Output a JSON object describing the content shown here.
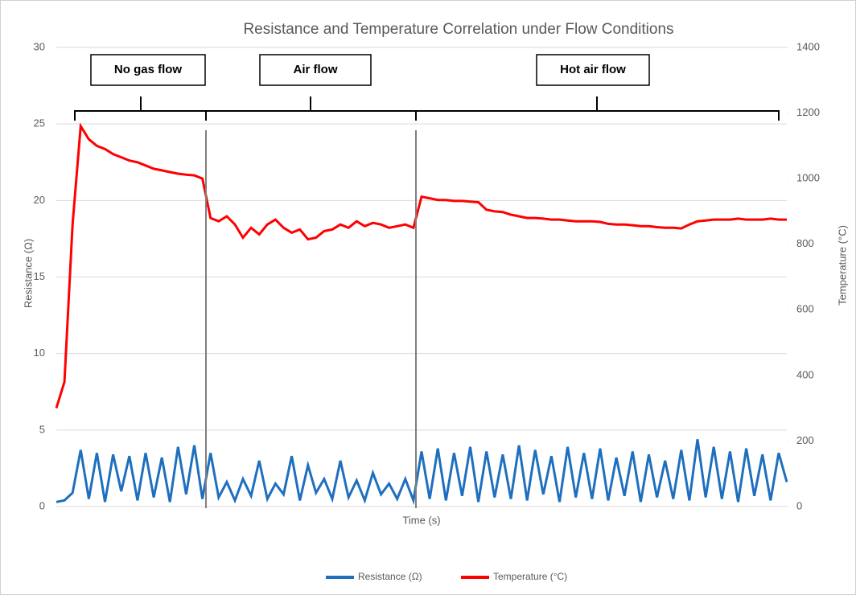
{
  "chart_data": {
    "type": "line",
    "title": "Resistance and Temperature Correlation under Flow Conditions",
    "xlabel": "Time (s)",
    "ylabel": "Resistance (Ω)",
    "y2label": "Temperature (°C)",
    "annotations": [
      "No gas flow",
      "Air flow",
      "Hot air flow"
    ],
    "ylim": [
      0,
      30
    ],
    "yticks": [
      0,
      5,
      10,
      15,
      20,
      25,
      30
    ],
    "y2lim": [
      0,
      1400
    ],
    "y2ticks": [
      0,
      200,
      400,
      600,
      800,
      1000,
      1200,
      1400
    ],
    "grid": true,
    "legend": "bottom",
    "series": [
      {
        "name": "Resistance (Ω)",
        "color": "#1f6fbf",
        "values": [
          0.3,
          0.4,
          0.9,
          3.7,
          0.5,
          3.5,
          0.3,
          3.4,
          1.0,
          3.3,
          0.4,
          3.5,
          0.6,
          3.2,
          0.3,
          3.9,
          0.8,
          4.0,
          0.5,
          3.5,
          0.6,
          1.6,
          0.4,
          1.8,
          0.7,
          3.0,
          0.5,
          1.5,
          0.8,
          3.3,
          0.4,
          2.7,
          0.9,
          1.8,
          0.5,
          3.0,
          0.6,
          1.7,
          0.4,
          2.2,
          0.8,
          1.5,
          0.5,
          1.8,
          0.4,
          3.6,
          0.5,
          3.8,
          0.4,
          3.5,
          0.7,
          3.9,
          0.3,
          3.6,
          0.6,
          3.4,
          0.5,
          4.0,
          0.4,
          3.7,
          0.8,
          3.3,
          0.3,
          3.9,
          0.6,
          3.5,
          0.5,
          3.8,
          0.4,
          3.2,
          0.7,
          3.6,
          0.3,
          3.4,
          0.6,
          3.0,
          0.5,
          3.7,
          0.4,
          4.4,
          0.6,
          3.9,
          0.5,
          3.6,
          0.3,
          3.8,
          0.7,
          3.4,
          0.4,
          3.5,
          1.6
        ]
      },
      {
        "name": "Temperature (°C)",
        "color": "#ff0000",
        "axis": "y2",
        "values": [
          300,
          380,
          860,
          1160,
          1120,
          1100,
          1090,
          1075,
          1065,
          1055,
          1050,
          1040,
          1030,
          1025,
          1020,
          1015,
          1012,
          1010,
          1000,
          880,
          870,
          885,
          860,
          820,
          850,
          830,
          860,
          875,
          850,
          835,
          845,
          815,
          820,
          840,
          845,
          860,
          850,
          870,
          855,
          865,
          860,
          850,
          855,
          860,
          850,
          945,
          940,
          935,
          935,
          932,
          932,
          930,
          928,
          905,
          900,
          898,
          890,
          885,
          880,
          880,
          878,
          875,
          875,
          872,
          870,
          870,
          870,
          868,
          862,
          860,
          860,
          858,
          855,
          855,
          852,
          850,
          850,
          848,
          860,
          870,
          872,
          875,
          875,
          875,
          878,
          875,
          875,
          875,
          878,
          875,
          875
        ]
      }
    ]
  }
}
